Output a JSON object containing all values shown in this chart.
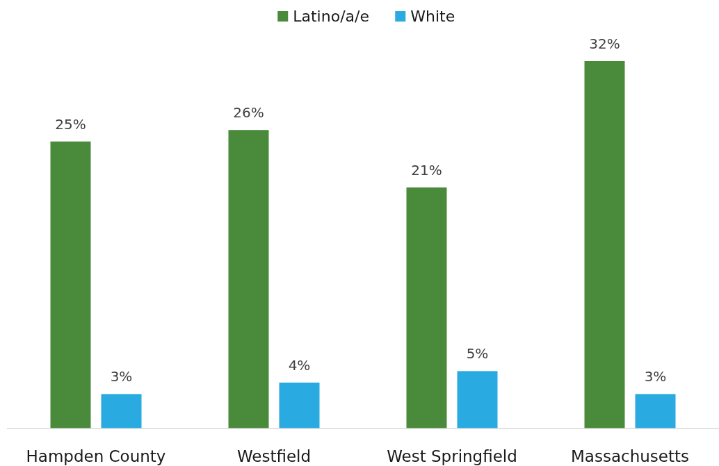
{
  "chart_data": {
    "type": "bar",
    "categories": [
      "Hampden County",
      "Westfield",
      "West Springfield",
      "Massachusetts"
    ],
    "series": [
      {
        "name": "Latino/a/e",
        "color": "#4a8b3b",
        "values": [
          25,
          26,
          21,
          32
        ],
        "value_labels": [
          "25%",
          "26%",
          "21%",
          "32%"
        ]
      },
      {
        "name": "White",
        "color": "#29abe2",
        "values": [
          3,
          4,
          5,
          3
        ],
        "value_labels": [
          "3%",
          "4%",
          "5%",
          "3%"
        ]
      }
    ],
    "legend": "top"
  }
}
